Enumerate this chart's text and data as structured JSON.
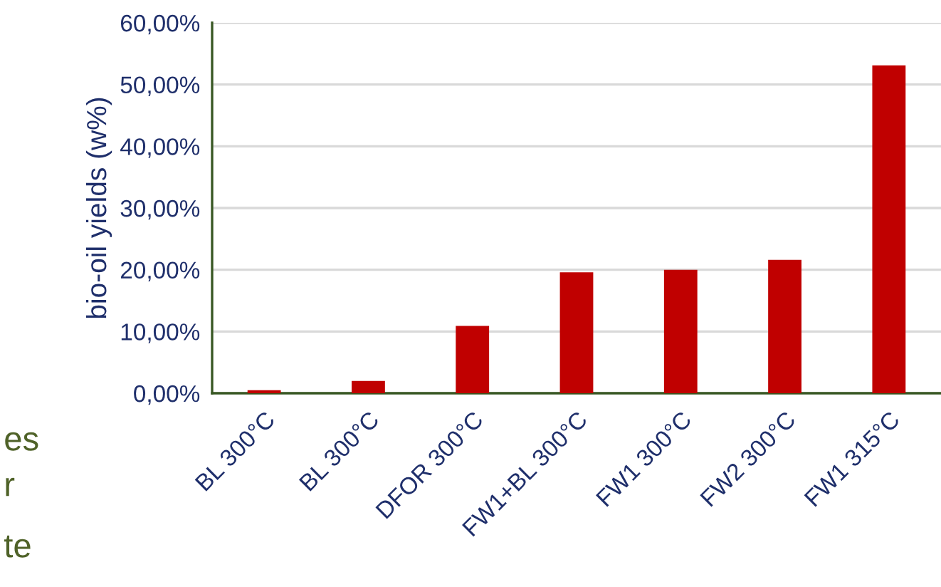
{
  "chart_data": {
    "type": "bar",
    "ylabel": "bio-oil yields (w%)",
    "categories": [
      "BL 300°C",
      "BL 300°C",
      "DFOR 300°C",
      "FW1+BL 300°C",
      "FW1 300°C",
      "FW2 300°C",
      "FW1 315°C"
    ],
    "values": [
      0.5,
      2.0,
      10.9,
      19.6,
      20.0,
      21.6,
      53.1
    ],
    "color": "#c00000",
    "ylim": [
      0,
      60
    ],
    "yticks": [
      {
        "value": 0,
        "label": "0,00%"
      },
      {
        "value": 10,
        "label": "10,00%"
      },
      {
        "value": 20,
        "label": "20,00%"
      },
      {
        "value": 30,
        "label": "30,00%"
      },
      {
        "value": 40,
        "label": "40,00%"
      },
      {
        "value": 50,
        "label": "50,00%"
      },
      {
        "value": 60,
        "label": "60,00%"
      }
    ],
    "grid": "y",
    "annotations": [
      "es",
      "r",
      "te"
    ]
  }
}
